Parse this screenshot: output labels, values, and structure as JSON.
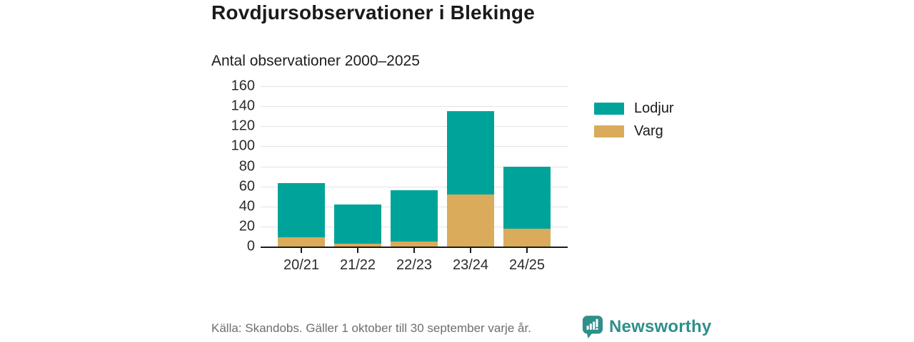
{
  "header": {
    "title": "Rovdjursobservationer i Blekinge",
    "subtitle": "Antal observationer 2000–2025"
  },
  "chart_data": {
    "type": "bar",
    "stacked": true,
    "categories": [
      "20/21",
      "21/22",
      "22/23",
      "23/24",
      "24/25"
    ],
    "series": [
      {
        "name": "Varg",
        "color": "#d9ab5a",
        "values": [
          9,
          3,
          5,
          52,
          18
        ]
      },
      {
        "name": "Lodjur",
        "color": "#00a39a",
        "values": [
          54,
          39,
          51,
          83,
          62
        ]
      }
    ],
    "totals": [
      63,
      42,
      56,
      135,
      80
    ],
    "legend": [
      "Lodjur",
      "Varg"
    ],
    "legend_position": "right",
    "title": "Rovdjursobservationer i Blekinge",
    "subtitle": "Antal observationer 2000–2025",
    "xlabel": "",
    "ylabel": "",
    "ylim": [
      0,
      160
    ],
    "ytick_step": 20,
    "grid": true
  },
  "footer": {
    "source": "Källa: Skandobs. Gäller 1 oktober till 30 september varje år.",
    "brand": "Newsworthy"
  },
  "icons": {
    "brand_logo": "newsworthy-speech-bubble-bar-chart-icon"
  },
  "colors": {
    "lodjur_teal": "#00a39a",
    "varg_gold": "#d9ab5a",
    "brand_teal": "#2f8f8a",
    "text_dark": "#1a1a1a",
    "text_muted": "#6e6e6e",
    "gridline": "#e3e3e3"
  }
}
